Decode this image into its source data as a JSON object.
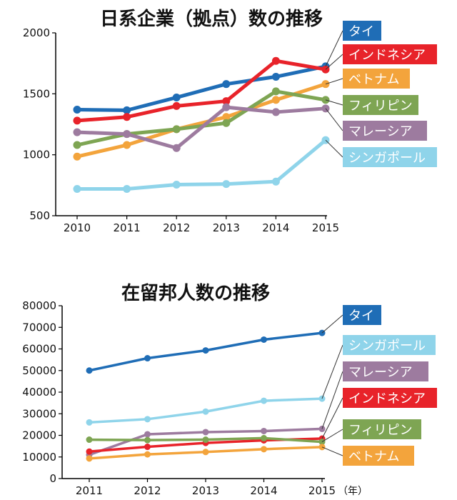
{
  "colors": {
    "thailand": "#1f6db6",
    "indonesia": "#e8232a",
    "vietnam": "#f3a43c",
    "philippines": "#7ea553",
    "malaysia": "#9d7b9f",
    "singapore": "#8fd4ea"
  },
  "chart_data": [
    {
      "type": "line",
      "title": "日系企業（拠点）数の推移",
      "xlabel": "",
      "ylabel": "",
      "x": [
        2010,
        2011,
        2012,
        2013,
        2014,
        2015
      ],
      "x_ticks": [
        "2010",
        "2011",
        "2012",
        "2013",
        "2014",
        "2015"
      ],
      "ylim": [
        500,
        2000
      ],
      "y_ticks": [
        "500",
        "1000",
        "1500",
        "2000"
      ],
      "grid": false,
      "legend": "right",
      "series": [
        {
          "name": "タイ",
          "color": "#1f6db6",
          "values": [
            1370,
            1365,
            1470,
            1580,
            1640,
            1725
          ]
        },
        {
          "name": "インドネシア",
          "color": "#e8232a",
          "values": [
            1280,
            1310,
            1400,
            1440,
            1770,
            1700
          ]
        },
        {
          "name": "ベトナム",
          "color": "#f3a43c",
          "values": [
            985,
            1080,
            1210,
            1310,
            1450,
            1580
          ]
        },
        {
          "name": "フィリピン",
          "color": "#7ea553",
          "values": [
            1080,
            1170,
            1210,
            1260,
            1520,
            1450
          ]
        },
        {
          "name": "マレーシア",
          "color": "#9d7b9f",
          "values": [
            1185,
            1170,
            1055,
            1390,
            1350,
            1380
          ]
        },
        {
          "name": "シンガポール",
          "color": "#8fd4ea",
          "values": [
            720,
            720,
            755,
            760,
            780,
            1120
          ]
        }
      ]
    },
    {
      "type": "line",
      "title": "在留邦人数の推移",
      "xlabel": "",
      "ylabel": "",
      "x_unit": "（年）",
      "x": [
        2011,
        2012,
        2013,
        2014,
        2015
      ],
      "x_ticks": [
        "2011",
        "2012",
        "2013",
        "2014",
        "2015"
      ],
      "ylim": [
        0,
        80000
      ],
      "y_ticks": [
        "0",
        "10000",
        "20000",
        "30000",
        "40000",
        "50000",
        "60000",
        "70000",
        "80000"
      ],
      "grid": false,
      "legend": "right",
      "series": [
        {
          "name": "タイ",
          "color": "#1f6db6",
          "values": [
            50000,
            55700,
            59300,
            64300,
            67400
          ]
        },
        {
          "name": "シンガポール",
          "color": "#8fd4ea",
          "values": [
            26000,
            27500,
            31000,
            36000,
            37000
          ]
        },
        {
          "name": "マレーシア",
          "color": "#9d7b9f",
          "values": [
            11000,
            20500,
            21500,
            22000,
            23000
          ]
        },
        {
          "name": "インドネシア",
          "color": "#e8232a",
          "values": [
            12500,
            14700,
            16500,
            17700,
            18500
          ]
        },
        {
          "name": "フィリピン",
          "color": "#7ea553",
          "values": [
            18000,
            17800,
            18000,
            18700,
            17000
          ]
        },
        {
          "name": "ベトナム",
          "color": "#f3a43c",
          "values": [
            9300,
            11200,
            12300,
            13600,
            14600
          ]
        }
      ]
    }
  ]
}
